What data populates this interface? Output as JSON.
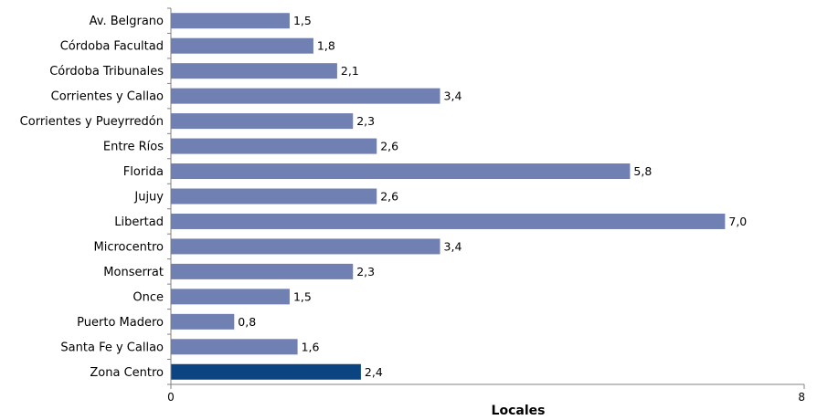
{
  "chart_data": {
    "type": "bar",
    "orientation": "horizontal",
    "categories": [
      "Av. Belgrano",
      "Córdoba Facultad",
      "Córdoba Tribunales",
      "Corrientes y Callao",
      "Corrientes y Pueyrredón",
      "Entre Ríos",
      "Florida",
      "Jujuy",
      "Libertad",
      "Microcentro",
      "Monserrat",
      "Once",
      "Puerto Madero",
      "Santa Fe y Callao",
      "Zona Centro"
    ],
    "values": [
      1.5,
      1.8,
      2.1,
      3.4,
      2.3,
      2.6,
      5.8,
      2.6,
      7.0,
      3.4,
      2.3,
      1.5,
      0.8,
      1.6,
      2.4
    ],
    "value_labels": [
      "1,5",
      "1,8",
      "2,1",
      "3,4",
      "2,3",
      "2,6",
      "5,8",
      "2,6",
      "7,0",
      "3,4",
      "2,3",
      "1,5",
      "0,8",
      "1,6",
      "2,4"
    ],
    "highlight_index": 14,
    "xlim": [
      0,
      8
    ],
    "x_ticks": [
      0,
      8
    ],
    "x_tick_labels": [
      "0",
      "8"
    ],
    "xlabel": "Locales",
    "grid": false,
    "colors": {
      "bar": "#7080b2",
      "highlight": "#0b4480",
      "axis": "#808080"
    }
  }
}
